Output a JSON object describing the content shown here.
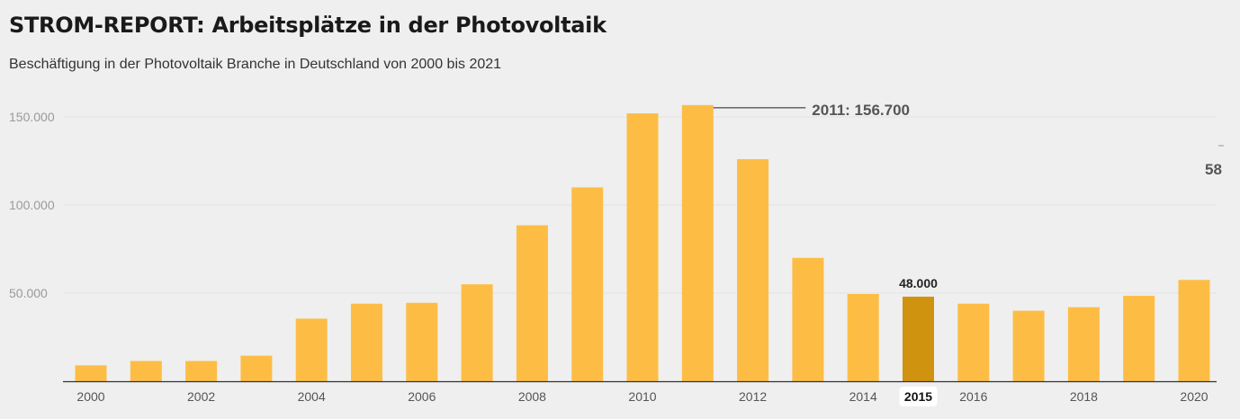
{
  "header": {
    "title": "STROM-REPORT: Arbeitsplätze in der Photovoltaik",
    "subtitle": "Beschäftigung in der Photovoltaik Branche in Deutschland von 2000 bis 2021"
  },
  "colors": {
    "bar": "#fdbd45",
    "bar_highlight": "#d0930f",
    "grid": "#e3e3e3",
    "axis": "#333333"
  },
  "chart_data": {
    "type": "bar",
    "categories": [
      "2000",
      "2001",
      "2002",
      "2003",
      "2004",
      "2005",
      "2006",
      "2007",
      "2008",
      "2009",
      "2010",
      "2011",
      "2012",
      "2013",
      "2014",
      "2015",
      "2016",
      "2017",
      "2018",
      "2019",
      "2020"
    ],
    "values": [
      9000,
      11500,
      11500,
      14500,
      35500,
      44000,
      44500,
      55000,
      88500,
      110000,
      152000,
      156700,
      126000,
      70000,
      49500,
      48000,
      44000,
      40000,
      42000,
      48500,
      57500
    ],
    "x_tick_labels": [
      "2000",
      "2002",
      "2004",
      "2006",
      "2008",
      "2010",
      "2012",
      "2014",
      "2015",
      "2016",
      "2018",
      "2020"
    ],
    "y_ticks": [
      50000,
      100000,
      150000
    ],
    "y_tick_labels": [
      "50.000",
      "100.000",
      "150.000"
    ],
    "ylim": [
      0,
      160000
    ],
    "highlight_category": "2015",
    "data_labels": [
      {
        "category": "2015",
        "text": "48.000"
      }
    ],
    "annotations": [
      {
        "category": "2011",
        "text": "2011: 156.700"
      },
      {
        "category": "2021",
        "text": "58"
      }
    ],
    "grid": true,
    "legend": "none"
  }
}
